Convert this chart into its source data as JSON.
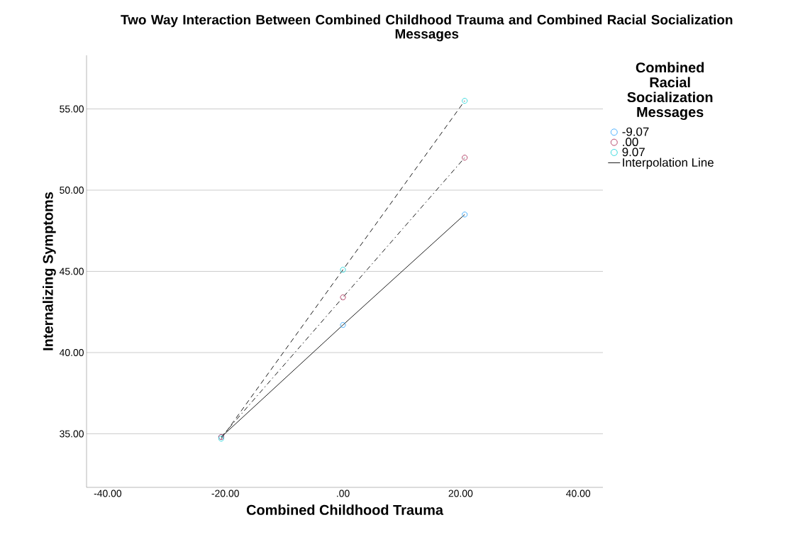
{
  "chart_data": {
    "type": "line",
    "title": "Two Way Interaction Between Combined Childhood Trauma and Combined Racial Socialization Messages",
    "xlabel": "Combined Childhood Trauma",
    "ylabel": "Internalizing Symptoms",
    "legend_title": "Combined Racial Socialization Messages",
    "x": [
      -20.7,
      0,
      20.7
    ],
    "series": [
      {
        "name": "-9.07",
        "color": "#4db2ff",
        "values": [
          34.8,
          41.7,
          48.5
        ],
        "line_style": "solid"
      },
      {
        "name": ".00",
        "color": "#b5476b",
        "values": [
          34.8,
          43.4,
          52.0
        ],
        "line_style": "dashdot"
      },
      {
        "name": "9.07",
        "color": "#3ad9dd",
        "values": [
          34.7,
          45.1,
          55.5
        ],
        "line_style": "dashed"
      }
    ],
    "annotations": [
      "Interpolation Line"
    ],
    "xlim": [
      -43.6,
      44.2
    ],
    "ylim": [
      31.7,
      58.3
    ],
    "xticks": [
      {
        "value": -40,
        "label": "-40.00"
      },
      {
        "value": -20,
        "label": "-20.00"
      },
      {
        "value": 0,
        "label": ".00"
      },
      {
        "value": 20,
        "label": "20.00"
      },
      {
        "value": 40,
        "label": "40.00"
      }
    ],
    "yticks": [
      {
        "value": 35,
        "label": "35.00"
      },
      {
        "value": 40,
        "label": "40.00"
      },
      {
        "value": 45,
        "label": "45.00"
      },
      {
        "value": 50,
        "label": "50.00"
      },
      {
        "value": 55,
        "label": "55.00"
      }
    ],
    "grid": "y",
    "legend": "top right",
    "marker": "circle"
  }
}
